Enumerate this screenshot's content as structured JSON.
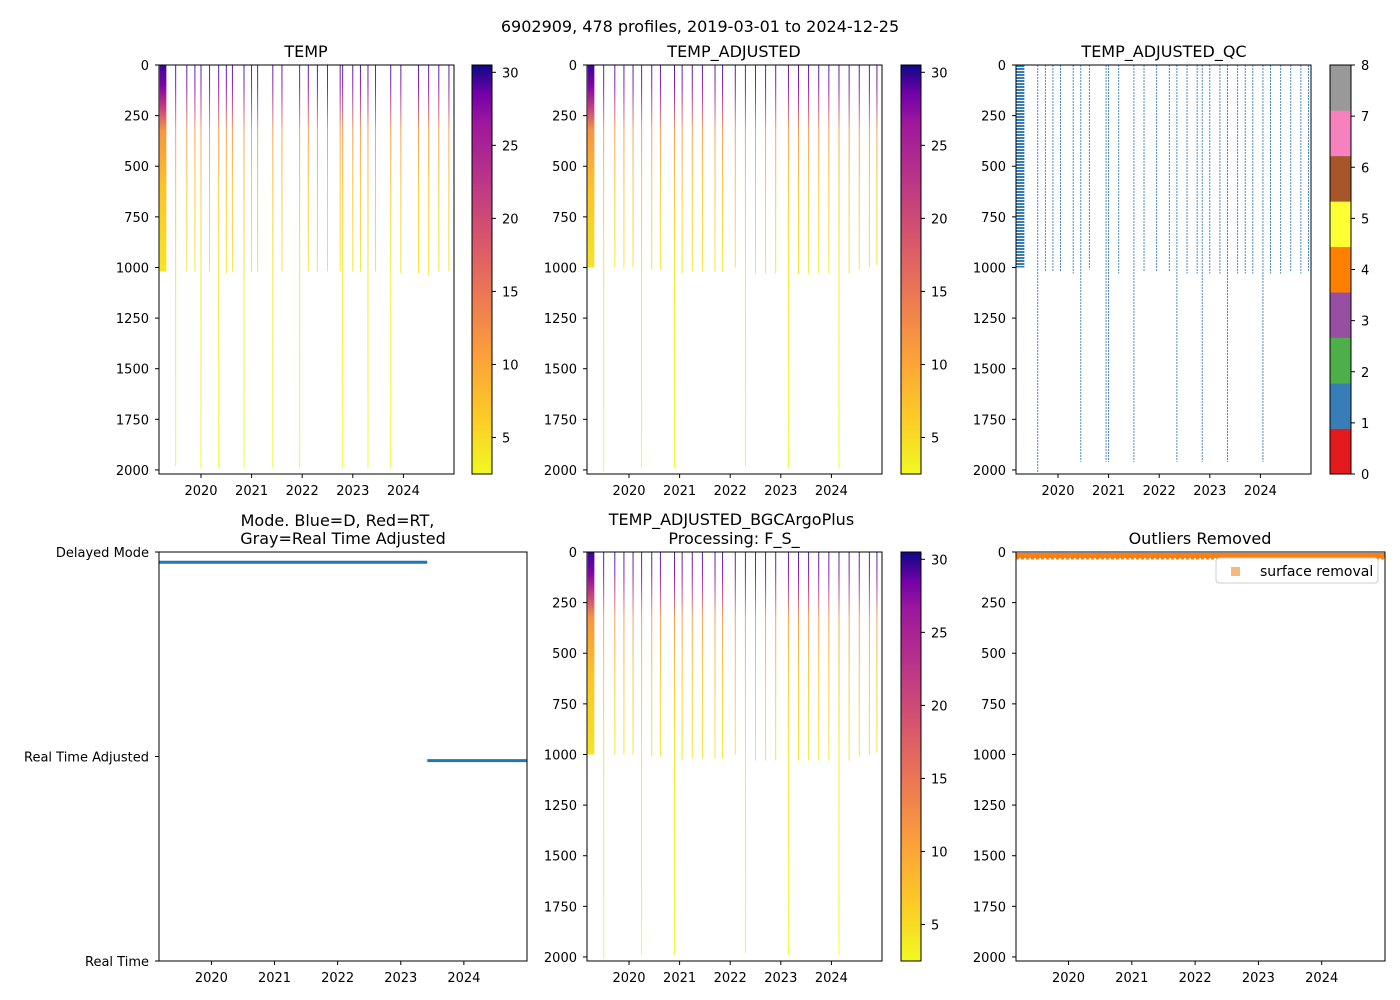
{
  "suptitle": "6902909, 478 profiles, 2019-03-01 to 2024-12-25",
  "colors": {
    "qc_blue": "#377eb8",
    "mode_line": "#1f77b4",
    "outlier": "#ff7f0e",
    "outlier_legend": "#f6b87c"
  },
  "chart_data": [
    {
      "type": "heatmap",
      "title": "TEMP",
      "xlabel": "",
      "ylabel": "",
      "xlim": [
        2019.17,
        2025.0
      ],
      "ylim": [
        2020,
        0
      ],
      "xticks": [
        2020,
        2021,
        2022,
        2023,
        2024
      ],
      "yticks": [
        0,
        250,
        500,
        750,
        1000,
        1250,
        1500,
        1750,
        2000
      ],
      "colorbar": {
        "cmap": "plasma_r",
        "range": [
          2.5,
          30.5
        ],
        "ticks": [
          5,
          10,
          15,
          20,
          25,
          30
        ]
      },
      "profiles_dense": [
        2019.2,
        2019.22,
        2019.24,
        2019.26,
        2019.28,
        2019.3
      ],
      "profiles_dense_depth": 1020,
      "profiles": [
        {
          "t": 2019.5,
          "d": 1980
        },
        {
          "t": 2019.72,
          "d": 1020
        },
        {
          "t": 2019.88,
          "d": 1020
        },
        {
          "t": 2020.0,
          "d": 1990
        },
        {
          "t": 2020.17,
          "d": 1020
        },
        {
          "t": 2020.35,
          "d": 1990
        },
        {
          "t": 2020.5,
          "d": 1030
        },
        {
          "t": 2020.62,
          "d": 1020
        },
        {
          "t": 2020.85,
          "d": 1990
        },
        {
          "t": 2021.0,
          "d": 1020
        },
        {
          "t": 2021.12,
          "d": 1020
        },
        {
          "t": 2021.42,
          "d": 1990
        },
        {
          "t": 2021.6,
          "d": 1020
        },
        {
          "t": 2021.95,
          "d": 1990
        },
        {
          "t": 2022.12,
          "d": 1020
        },
        {
          "t": 2022.3,
          "d": 1020
        },
        {
          "t": 2022.5,
          "d": 1020
        },
        {
          "t": 2022.75,
          "d": 1020
        },
        {
          "t": 2022.8,
          "d": 1990
        },
        {
          "t": 2023.0,
          "d": 1020
        },
        {
          "t": 2023.15,
          "d": 1020
        },
        {
          "t": 2023.3,
          "d": 1990
        },
        {
          "t": 2023.45,
          "d": 1020
        },
        {
          "t": 2023.75,
          "d": 1990
        },
        {
          "t": 2023.95,
          "d": 1030
        },
        {
          "t": 2024.3,
          "d": 1030
        },
        {
          "t": 2024.5,
          "d": 1040
        },
        {
          "t": 2024.7,
          "d": 1020
        },
        {
          "t": 2024.9,
          "d": 1020
        }
      ]
    },
    {
      "type": "heatmap",
      "title": "TEMP_ADJUSTED",
      "xlabel": "",
      "ylabel": "",
      "xlim": [
        2019.17,
        2025.0
      ],
      "ylim": [
        2020,
        0
      ],
      "xticks": [
        2020,
        2021,
        2022,
        2023,
        2024
      ],
      "yticks": [
        0,
        250,
        500,
        750,
        1000,
        1250,
        1500,
        1750,
        2000
      ],
      "colorbar": {
        "cmap": "plasma_r",
        "range": [
          2.5,
          30.5
        ],
        "ticks": [
          5,
          10,
          15,
          20,
          25,
          30
        ]
      },
      "profiles_dense": [
        2019.2,
        2019.22,
        2019.24,
        2019.26,
        2019.28,
        2019.3
      ],
      "profiles_dense_depth": 1000,
      "profiles": [
        {
          "t": 2019.5,
          "d": 2010
        },
        {
          "t": 2019.72,
          "d": 1000
        },
        {
          "t": 2019.9,
          "d": 1000
        },
        {
          "t": 2020.08,
          "d": 1000
        },
        {
          "t": 2020.25,
          "d": 1990
        },
        {
          "t": 2020.45,
          "d": 1010
        },
        {
          "t": 2020.62,
          "d": 1010
        },
        {
          "t": 2020.9,
          "d": 1990
        },
        {
          "t": 2021.05,
          "d": 1030
        },
        {
          "t": 2021.25,
          "d": 1020
        },
        {
          "t": 2021.45,
          "d": 1020
        },
        {
          "t": 2021.7,
          "d": 1020
        },
        {
          "t": 2021.85,
          "d": 1020
        },
        {
          "t": 2022.1,
          "d": 1000
        },
        {
          "t": 2022.3,
          "d": 1980
        },
        {
          "t": 2022.5,
          "d": 1030
        },
        {
          "t": 2022.7,
          "d": 1030
        },
        {
          "t": 2022.9,
          "d": 1030
        },
        {
          "t": 2023.15,
          "d": 1990
        },
        {
          "t": 2023.35,
          "d": 1030
        },
        {
          "t": 2023.55,
          "d": 1030
        },
        {
          "t": 2023.75,
          "d": 1030
        },
        {
          "t": 2023.95,
          "d": 1030
        },
        {
          "t": 2024.15,
          "d": 1990
        },
        {
          "t": 2024.35,
          "d": 1030
        },
        {
          "t": 2024.55,
          "d": 1010
        },
        {
          "t": 2024.75,
          "d": 1000
        },
        {
          "t": 2024.9,
          "d": 990
        }
      ]
    },
    {
      "type": "heatmap",
      "title": "TEMP_ADJUSTED_QC",
      "xlabel": "",
      "ylabel": "",
      "xlim": [
        2019.17,
        2025.0
      ],
      "ylim": [
        2020,
        0
      ],
      "xticks": [
        2020,
        2021,
        2022,
        2023,
        2024
      ],
      "yticks": [
        0,
        250,
        500,
        750,
        1000,
        1250,
        1500,
        1750,
        2000
      ],
      "colorbar": {
        "cmap": "Set1_discrete",
        "range": [
          0,
          8
        ],
        "ticks": [
          0,
          1,
          2,
          3,
          4,
          5,
          6,
          7,
          8
        ],
        "classes": [
          "#e41a1c",
          "#377eb8",
          "#4daf4a",
          "#984ea3",
          "#ff7f00",
          "#ffff33",
          "#a65628",
          "#f781bf",
          "#999999"
        ]
      },
      "qc_value": 1,
      "profiles_dense": [
        2019.18,
        2019.2,
        2019.22,
        2019.24,
        2019.26,
        2019.28,
        2019.3,
        2019.32
      ],
      "profiles_dense_depth": 1000,
      "profiles": [
        {
          "t": 2019.6,
          "d": 2010
        },
        {
          "t": 2019.75,
          "d": 1020
        },
        {
          "t": 2019.9,
          "d": 1020
        },
        {
          "t": 2020.05,
          "d": 1020
        },
        {
          "t": 2020.3,
          "d": 1030
        },
        {
          "t": 2020.45,
          "d": 1960
        },
        {
          "t": 2020.62,
          "d": 1010
        },
        {
          "t": 2020.95,
          "d": 1960
        },
        {
          "t": 2021.0,
          "d": 1960
        },
        {
          "t": 2021.2,
          "d": 1030
        },
        {
          "t": 2021.5,
          "d": 1960
        },
        {
          "t": 2021.7,
          "d": 1020
        },
        {
          "t": 2021.95,
          "d": 1020
        },
        {
          "t": 2022.2,
          "d": 1020
        },
        {
          "t": 2022.35,
          "d": 1960
        },
        {
          "t": 2022.55,
          "d": 1030
        },
        {
          "t": 2022.75,
          "d": 1030
        },
        {
          "t": 2022.85,
          "d": 1960
        },
        {
          "t": 2023.0,
          "d": 1030
        },
        {
          "t": 2023.2,
          "d": 1030
        },
        {
          "t": 2023.35,
          "d": 1960
        },
        {
          "t": 2023.55,
          "d": 1030
        },
        {
          "t": 2023.7,
          "d": 1030
        },
        {
          "t": 2023.85,
          "d": 1030
        },
        {
          "t": 2024.05,
          "d": 1960
        },
        {
          "t": 2024.2,
          "d": 1030
        },
        {
          "t": 2024.4,
          "d": 1030
        },
        {
          "t": 2024.6,
          "d": 1020
        },
        {
          "t": 2024.8,
          "d": 1030
        },
        {
          "t": 2024.95,
          "d": 1020
        }
      ]
    },
    {
      "type": "line",
      "title": "Mode. Blue=D, Red=RT,\nGray=Real Time Adjusted",
      "xlabel": "",
      "ylabel": "",
      "xlim": [
        2019.17,
        2025.0
      ],
      "ylim": [
        0,
        2
      ],
      "xticks": [
        2020,
        2021,
        2022,
        2023,
        2024
      ],
      "ytick_labels": [
        "Real Time",
        "Real Time Adjusted",
        "Delayed Mode"
      ],
      "series": [
        {
          "name": "Delayed Mode",
          "x": [
            2019.17,
            2023.42
          ],
          "y": [
            1.95,
            1.95
          ]
        },
        {
          "name": "Real Time Adjusted",
          "x": [
            2023.42,
            2025.0
          ],
          "y": [
            0.98,
            0.98
          ]
        }
      ]
    },
    {
      "type": "heatmap",
      "title": "TEMP_ADJUSTED_BGCArgoPlus\nProcessing: F_S_",
      "xlabel": "",
      "ylabel": "",
      "xlim": [
        2019.17,
        2025.0
      ],
      "ylim": [
        2020,
        0
      ],
      "xticks": [
        2020,
        2021,
        2022,
        2023,
        2024
      ],
      "yticks": [
        0,
        250,
        500,
        750,
        1000,
        1250,
        1500,
        1750,
        2000
      ],
      "colorbar": {
        "cmap": "plasma_r",
        "range": [
          2.5,
          30.5
        ],
        "ticks": [
          5,
          10,
          15,
          20,
          25,
          30
        ]
      },
      "profiles_dense": [
        2019.2,
        2019.22,
        2019.24,
        2019.26,
        2019.28,
        2019.3
      ],
      "profiles_dense_depth": 1000,
      "profiles": [
        {
          "t": 2019.5,
          "d": 2010
        },
        {
          "t": 2019.72,
          "d": 1000
        },
        {
          "t": 2019.9,
          "d": 1000
        },
        {
          "t": 2020.08,
          "d": 1000
        },
        {
          "t": 2020.25,
          "d": 1990
        },
        {
          "t": 2020.45,
          "d": 1010
        },
        {
          "t": 2020.62,
          "d": 1010
        },
        {
          "t": 2020.9,
          "d": 1990
        },
        {
          "t": 2021.05,
          "d": 1030
        },
        {
          "t": 2021.25,
          "d": 1020
        },
        {
          "t": 2021.45,
          "d": 1020
        },
        {
          "t": 2021.7,
          "d": 1020
        },
        {
          "t": 2021.85,
          "d": 1020
        },
        {
          "t": 2022.1,
          "d": 1000
        },
        {
          "t": 2022.3,
          "d": 1980
        },
        {
          "t": 2022.5,
          "d": 1030
        },
        {
          "t": 2022.7,
          "d": 1030
        },
        {
          "t": 2022.9,
          "d": 1030
        },
        {
          "t": 2023.15,
          "d": 1990
        },
        {
          "t": 2023.35,
          "d": 1030
        },
        {
          "t": 2023.55,
          "d": 1030
        },
        {
          "t": 2023.75,
          "d": 1030
        },
        {
          "t": 2023.95,
          "d": 1030
        },
        {
          "t": 2024.15,
          "d": 1990
        },
        {
          "t": 2024.35,
          "d": 1030
        },
        {
          "t": 2024.55,
          "d": 1010
        },
        {
          "t": 2024.75,
          "d": 1000
        },
        {
          "t": 2024.9,
          "d": 990
        }
      ]
    },
    {
      "type": "scatter",
      "title": "Outliers Removed",
      "xlabel": "",
      "ylabel": "",
      "xlim": [
        2019.17,
        2025.0
      ],
      "ylim": [
        2020,
        0
      ],
      "xticks": [
        2020,
        2021,
        2022,
        2023,
        2024
      ],
      "yticks": [
        0,
        250,
        500,
        750,
        1000,
        1250,
        1500,
        1750,
        2000
      ],
      "legend": {
        "label": "surface removal",
        "loc": "upper right"
      },
      "series": [
        {
          "name": "surface removal",
          "x_range": [
            2019.17,
            2025.0
          ],
          "y_range": [
            0,
            20
          ]
        }
      ]
    }
  ]
}
